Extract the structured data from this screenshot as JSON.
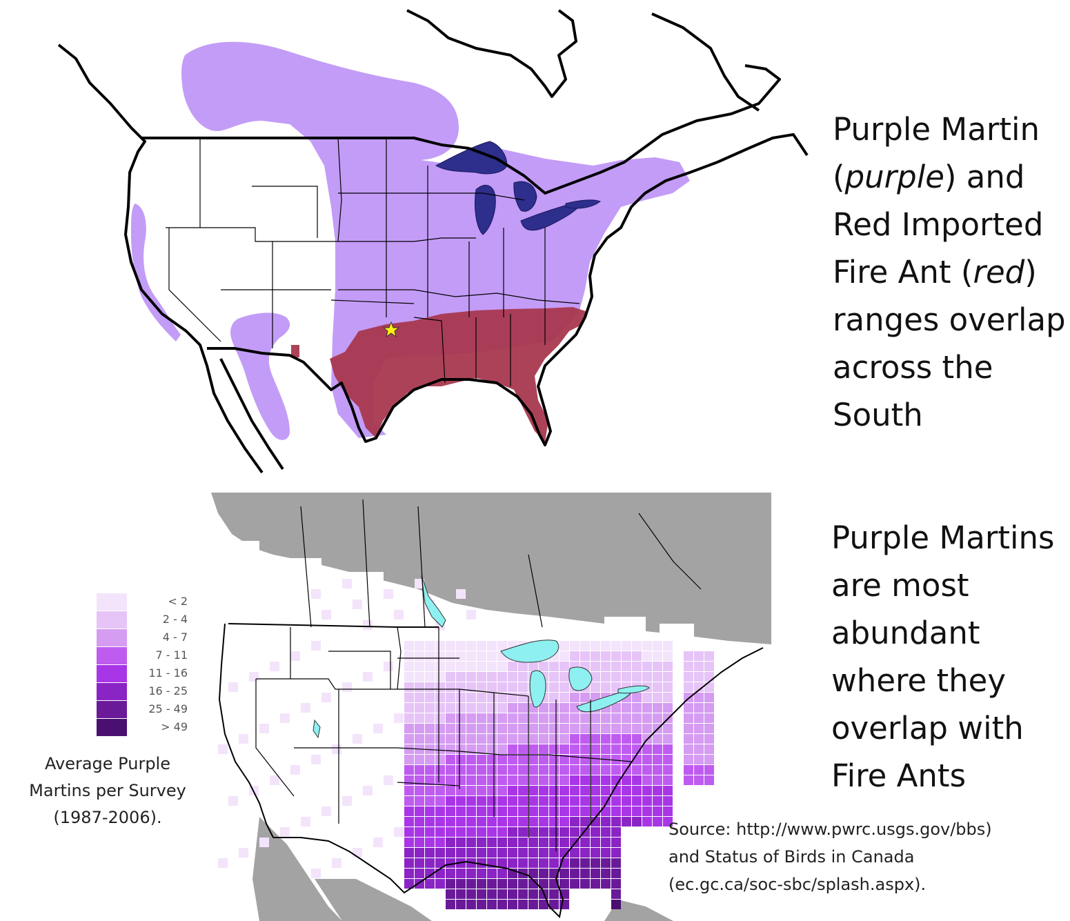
{
  "top_map": {
    "colors": {
      "ocean": "#ffffff",
      "land_outline": "#000000",
      "purple_martin_range": "#c39cf7",
      "fire_ant_range": "#a8384f",
      "great_lakes": "#2e2e8c",
      "star": "#ffef14"
    },
    "marker_icon": "star-icon"
  },
  "top_caption": {
    "line1": "Purple Martin",
    "line2_open": "(",
    "line2_italic": "purple",
    "line2_close": ") and",
    "line3": "Red Imported",
    "line4_open": "Fire Ant (",
    "line4_italic": "red",
    "line4_close": ")",
    "line5": "ranges overlap",
    "line6": "across the",
    "line7": "South"
  },
  "bottom_map": {
    "colors": {
      "outside_range": "#a3a3a3",
      "no_data": "#ffffff",
      "water": "#8ef0f0"
    }
  },
  "legend": {
    "items": [
      {
        "label": "< 2",
        "color": "#f3e4fb"
      },
      {
        "label": "2 - 4",
        "color": "#e6c4f7"
      },
      {
        "label": "4 - 7",
        "color": "#d59cf2"
      },
      {
        "label": "7 - 11",
        "color": "#bf5cf0"
      },
      {
        "label": "11 - 16",
        "color": "#a936e6"
      },
      {
        "label": "16 - 25",
        "color": "#8a24c4"
      },
      {
        "label": "25 - 49",
        "color": "#6a1a99"
      },
      {
        "label": "> 49",
        "color": "#4a0f70"
      }
    ],
    "caption_line1": "Average Purple",
    "caption_line2": "Martins per Survey",
    "caption_line3": "(1987-2006)."
  },
  "bottom_caption": {
    "line1": "Purple Martins",
    "line2": "are most",
    "line3": "abundant",
    "line4": "where they",
    "line5": "overlap with",
    "line6": "Fire Ants"
  },
  "source": {
    "line1": "Source: http://www.pwrc.usgs.gov/bbs)",
    "line2": "and Status of Birds in Canada",
    "line3": "(ec.gc.ca/soc-sbc/splash.aspx)."
  }
}
